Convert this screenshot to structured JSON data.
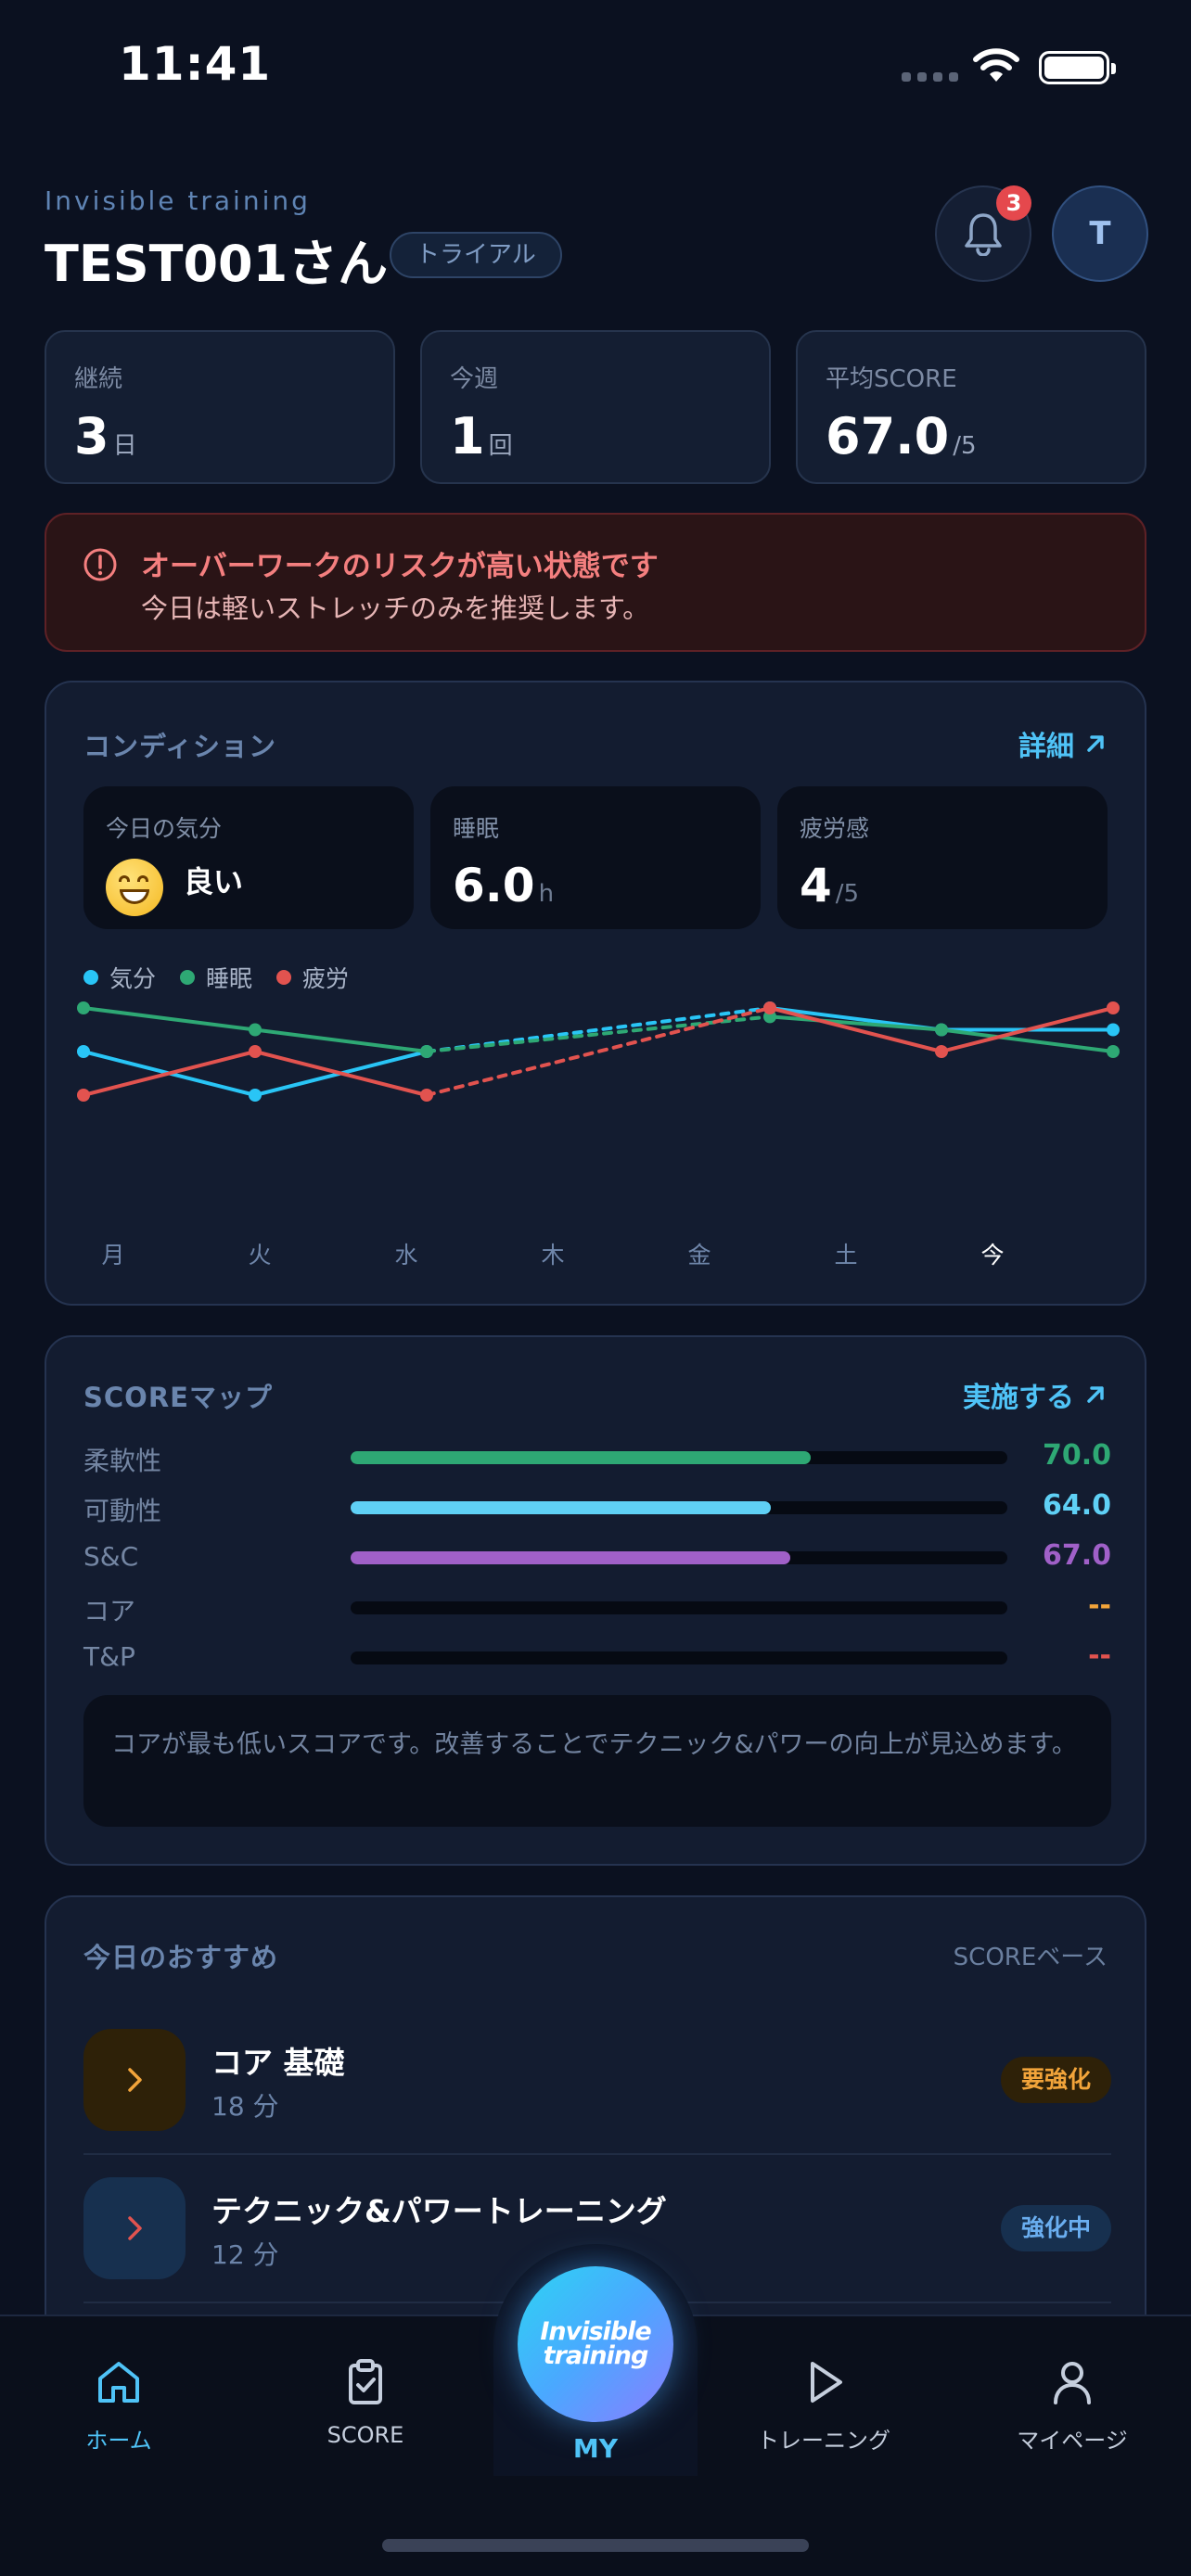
{
  "status_bar": {
    "time": "11:41"
  },
  "header": {
    "app_name": "Invisible training",
    "user_name": "TEST001さん",
    "plan_badge": "トライアル",
    "notification_count": "3",
    "avatar_initial": "T"
  },
  "stats": [
    {
      "label": "継続",
      "value": "3",
      "unit": "日"
    },
    {
      "label": "今週",
      "value": "1",
      "unit": "回"
    },
    {
      "label": "平均SCORE",
      "value": "67.0",
      "unit": "/5"
    }
  ],
  "alert": {
    "title": "オーバーワークのリスクが高い状態です",
    "message": "今日は軽いストレッチのみを推奨します。"
  },
  "condition": {
    "title": "コンディション",
    "detail_link": "詳細",
    "mood": {
      "label": "今日の気分",
      "value": "良い"
    },
    "sleep": {
      "label": "睡眠",
      "value": "6.0",
      "unit": "h"
    },
    "fatigue": {
      "label": "疲労感",
      "value": "4",
      "unit": "/5"
    }
  },
  "chart_data": {
    "type": "line",
    "categories": [
      "月",
      "火",
      "水",
      "木",
      "金",
      "土",
      "今"
    ],
    "series": [
      {
        "name": "気分",
        "color": "#29c5f6",
        "values": [
          3,
          2,
          3,
          null,
          4,
          3.5,
          3.5
        ]
      },
      {
        "name": "睡眠",
        "color": "#2ea874",
        "values": [
          4,
          3.5,
          3,
          null,
          3.8,
          3.5,
          3
        ]
      },
      {
        "name": "疲労",
        "color": "#e2534f",
        "values": [
          2,
          3,
          2,
          null,
          4,
          3,
          4
        ]
      }
    ],
    "ylim": [
      0,
      5
    ],
    "note": "dashed segments connect 水 to 金 across missing 木"
  },
  "score_map": {
    "title": "SCOREマップ",
    "action_link": "実施する",
    "rows": [
      {
        "label": "柔軟性",
        "value": "70.0",
        "ratio": 0.7,
        "color": "#2ea874"
      },
      {
        "label": "可動性",
        "value": "64.0",
        "ratio": 0.64,
        "color": "#5fd0f5"
      },
      {
        "label": "S&C",
        "value": "67.0",
        "ratio": 0.67,
        "color": "#a060c8"
      },
      {
        "label": "コア",
        "value": "--",
        "ratio": 0,
        "color": "#f2a43a"
      },
      {
        "label": "T&P",
        "value": "--",
        "ratio": 0,
        "color": "#e2534f"
      }
    ],
    "note": "コアが最も低いスコアです。改善することでテクニック&パワーの向上が見込めます。"
  },
  "recommendations": {
    "title": "今日のおすすめ",
    "basis": "SCOREベース",
    "items": [
      {
        "title": "コア 基礎",
        "duration": "18 分",
        "badge": "要強化",
        "accent": "#f2a43a"
      },
      {
        "title": "テクニック&パワートレーニング",
        "duration": "12 分",
        "badge": "強化中",
        "accent": "#e2534f"
      }
    ]
  },
  "tab_bar": {
    "home": "ホーム",
    "score": "SCORE",
    "center_logo_line1": "Invisible",
    "center_logo_line2": "training",
    "center_label": "MY",
    "training": "トレーニング",
    "mypage": "マイページ"
  }
}
